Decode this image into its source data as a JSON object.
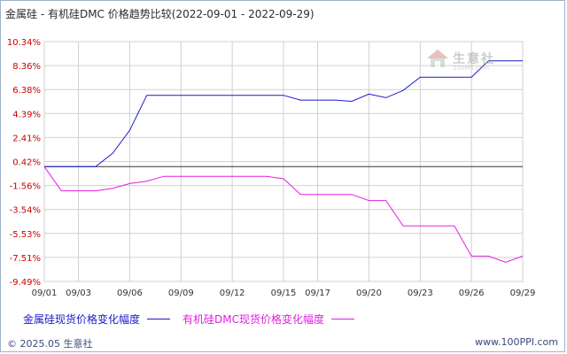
{
  "title": "金属硅 - 有机硅DMC 价格趋势比较(2022-09-01 - 2022-09-29)",
  "legend": [
    {
      "label": "金属硅现货价格变化幅度",
      "color": "#1a1ac8"
    },
    {
      "label": "有机硅DMC现货价格变化幅度",
      "color": "#e020e0"
    }
  ],
  "footer": {
    "copyright": "© 2025.05 生意社",
    "url": "www.100PPI.com"
  },
  "watermark": {
    "text": "生意社",
    "url": "100PPI.com"
  },
  "colors": {
    "blue_series": "#1a1ac8",
    "magenta_series": "#e020e0",
    "grid": "#d0d0d0",
    "axis_text": "#cc0000",
    "zero_line": "#333333"
  },
  "chart_data": {
    "type": "line",
    "title": "金属硅 - 有机硅DMC 价格趋势比较(2022-09-01 - 2022-09-29)",
    "ylim": [
      -9.49,
      10.34
    ],
    "y_ticks": [
      "10.34%",
      "8.36%",
      "6.38%",
      "4.39%",
      "2.41%",
      "0.42%",
      "-1.56%",
      "-3.54%",
      "-5.53%",
      "-7.51%",
      "-9.49%"
    ],
    "x_tick_labels": [
      "09/01",
      "09/03",
      "09/06",
      "09/09",
      "09/12",
      "09/15",
      "09/17",
      "09/20",
      "09/23",
      "09/26",
      "09/29"
    ],
    "x_tick_days": [
      1,
      3,
      6,
      9,
      12,
      15,
      17,
      20,
      23,
      26,
      29
    ],
    "grid": true,
    "legend_position": "bottom",
    "series": [
      {
        "name": "金属硅现货价格变化幅度",
        "color": "#1a1ac8",
        "x": [
          1,
          2,
          3,
          4,
          5,
          6,
          7,
          8,
          9,
          10,
          11,
          12,
          13,
          14,
          15,
          16,
          17,
          18,
          19,
          20,
          21,
          22,
          23,
          24,
          25,
          26,
          27,
          28,
          29
        ],
        "y": [
          0,
          0,
          0,
          0,
          1.1,
          3.0,
          5.9,
          5.9,
          5.9,
          5.9,
          5.9,
          5.9,
          5.9,
          5.9,
          5.9,
          5.5,
          5.5,
          5.5,
          5.4,
          6.0,
          5.7,
          6.3,
          7.4,
          7.4,
          7.4,
          7.4,
          8.75,
          8.75,
          8.75
        ]
      },
      {
        "name": "有机硅DMC现货价格变化幅度",
        "color": "#e020e0",
        "x": [
          1,
          2,
          3,
          4,
          5,
          6,
          7,
          8,
          9,
          10,
          11,
          12,
          13,
          14,
          15,
          16,
          17,
          18,
          19,
          20,
          21,
          22,
          23,
          24,
          25,
          26,
          27,
          28,
          29
        ],
        "y": [
          0,
          -2.0,
          -2.0,
          -2.0,
          -1.8,
          -1.4,
          -1.2,
          -0.8,
          -0.8,
          -0.8,
          -0.8,
          -0.8,
          -0.8,
          -0.8,
          -1.0,
          -2.3,
          -2.3,
          -2.3,
          -2.3,
          -2.8,
          -2.8,
          -4.9,
          -4.9,
          -4.9,
          -4.9,
          -7.4,
          -7.4,
          -7.9,
          -7.4
        ]
      }
    ]
  }
}
